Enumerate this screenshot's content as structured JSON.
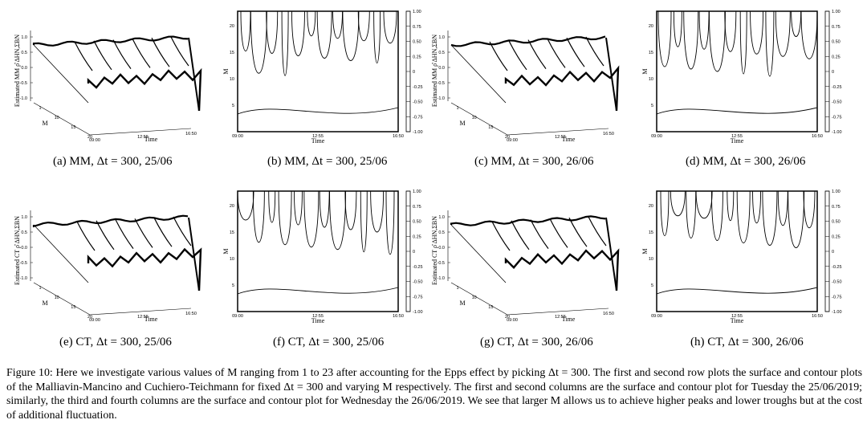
{
  "panels": [
    {
      "id": "a",
      "type": "surface",
      "day": "25/06",
      "zlabel": "Estimated MM ρ̂",
      "sup": "ΔHN,ΣBN",
      "caption": "(a) MM, Δt = 300, 25/06"
    },
    {
      "id": "b",
      "type": "contour",
      "day": "25/06",
      "caption": "(b) MM, Δt = 300, 25/06"
    },
    {
      "id": "c",
      "type": "surface",
      "day": "26/06",
      "zlabel": "Estimated MM ρ̂",
      "sup": "ΔHN,ΣBN",
      "caption": "(c) MM, Δt = 300, 26/06"
    },
    {
      "id": "d",
      "type": "contour",
      "day": "26/06",
      "caption": "(d) MM, Δt = 300, 26/06"
    },
    {
      "id": "e",
      "type": "surface",
      "day": "25/06",
      "zlabel": "Estimated CT ρ̂",
      "sup": "ΔHN,ΣBN",
      "caption": "(e) CT, Δt = 300, 25/06"
    },
    {
      "id": "f",
      "type": "contour",
      "day": "25/06",
      "caption": "(f) CT, Δt = 300, 25/06"
    },
    {
      "id": "g",
      "type": "surface",
      "day": "26/06",
      "zlabel": "Estimated CT ρ̂",
      "sup": "ΔHN,ΣBN",
      "caption": "(g) CT, Δt = 300, 26/06"
    },
    {
      "id": "h",
      "type": "contour",
      "day": "26/06",
      "caption": "(h) CT, Δt = 300, 26/06"
    }
  ],
  "axes": {
    "surface_z_ticks": [
      "1.0",
      "0.5",
      "0.0",
      "-0.5",
      "-1.0"
    ],
    "surface_m_ticks": [
      "1",
      "10",
      "15",
      "20"
    ],
    "time_ticks": [
      "09:00",
      "12:55",
      "16:50"
    ],
    "m_label": "M",
    "time_label": "Time",
    "contour_m_ticks": [
      "20",
      "15",
      "10",
      "5"
    ],
    "colorbar_ticks": [
      "1.00",
      "0.75",
      "0.50",
      "0.25",
      "0",
      "-0.25",
      "-0.50",
      "-0.75",
      "-1.00"
    ]
  },
  "caption": {
    "label": "Figure 10:",
    "text": "Here we investigate various values of M ranging from 1 to 23 after accounting for the Epps effect by picking Δt = 300. The first and second row plots the surface and contour plots of the Malliavin-Mancino and Cuchiero-Teichmann for fixed Δt = 300 and varying M respectively. The first and second columns are the surface and contour plot for Tuesday the 25/06/2019; similarly, the third and fourth columns are the surface and contour plot for Wednesday the 26/06/2019. We see that larger M allows us to achieve higher peaks and lower troughs but at the cost of additional fluctuation."
  },
  "colors": {
    "ink": "#000000",
    "paper": "#ffffff"
  }
}
